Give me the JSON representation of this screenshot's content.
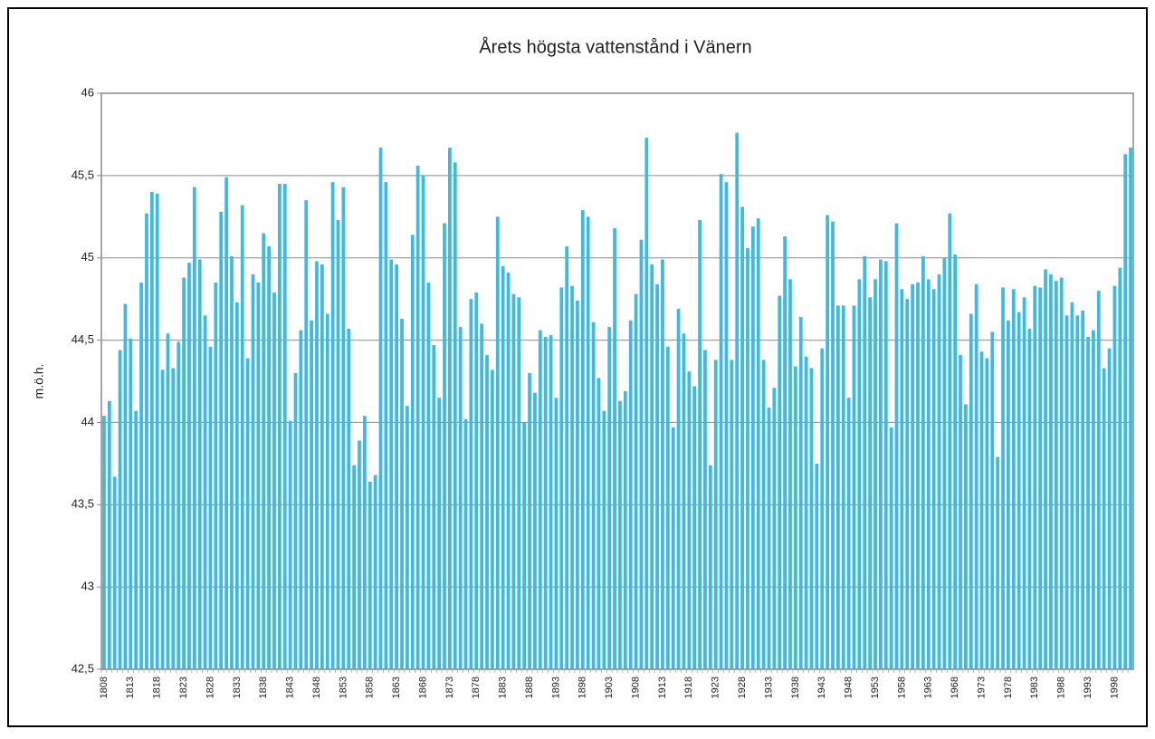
{
  "chart_data": {
    "type": "bar",
    "title": "Årets högsta vattenstånd i Vänern",
    "y_label": "m.ö.h.",
    "color": "#3bbbe3",
    "grid": true,
    "ylim": [
      42.5,
      46
    ],
    "yticks": [
      {
        "value": 42.5,
        "label": "42,5"
      },
      43,
      {
        "value": 43.5,
        "label": "43,5"
      },
      44,
      {
        "value": 44.5,
        "label": "44,5"
      },
      45,
      {
        "value": 45.5,
        "label": "45,5"
      },
      46
    ],
    "categories": [
      "1808",
      null,
      null,
      null,
      null,
      "1813",
      null,
      null,
      null,
      null,
      "1818",
      null,
      null,
      null,
      null,
      "1823",
      null,
      null,
      null,
      null,
      "1828",
      null,
      null,
      null,
      null,
      "1833",
      null,
      null,
      null,
      null,
      "1838",
      null,
      null,
      null,
      null,
      "1843",
      null,
      null,
      null,
      null,
      "1848",
      null,
      null,
      null,
      null,
      "1853",
      null,
      null,
      null,
      null,
      "1858",
      null,
      null,
      null,
      null,
      "1863",
      null,
      null,
      null,
      null,
      "1868",
      null,
      null,
      null,
      null,
      "1873",
      null,
      null,
      null,
      null,
      "1878",
      null,
      null,
      null,
      null,
      "1883",
      null,
      null,
      null,
      null,
      "1888",
      null,
      null,
      null,
      null,
      "1893",
      null,
      null,
      null,
      null,
      "1898",
      null,
      null,
      null,
      null,
      "1903",
      null,
      null,
      null,
      null,
      "1908",
      null,
      null,
      null,
      null,
      "1913",
      null,
      null,
      null,
      null,
      "1918",
      null,
      null,
      null,
      null,
      "1923",
      null,
      null,
      null,
      null,
      "1928",
      null,
      null,
      null,
      null,
      "1933",
      null,
      null,
      null,
      null,
      "1938",
      null,
      null,
      null,
      null,
      "1943",
      null,
      null,
      null,
      null,
      "1948",
      null,
      null,
      null,
      null,
      "1953",
      null,
      null,
      null,
      null,
      "1958",
      null,
      null,
      null,
      null,
      "1963",
      null,
      null,
      null,
      null,
      "1968",
      null,
      null,
      null,
      null,
      "1973",
      null,
      null,
      null,
      null,
      "1978",
      null,
      null,
      null,
      null,
      "1983",
      null,
      null,
      null,
      null,
      "1988",
      null,
      null,
      null,
      null,
      "1993",
      null,
      null,
      null,
      null,
      "1998",
      null,
      null,
      null
    ],
    "values": [
      44.04,
      44.13,
      43.67,
      44.44,
      44.72,
      44.51,
      44.07,
      44.85,
      45.27,
      45.4,
      45.39,
      44.32,
      44.54,
      44.33,
      44.49,
      44.88,
      44.97,
      45.43,
      44.99,
      44.65,
      44.46,
      44.85,
      45.28,
      45.49,
      45.01,
      44.73,
      45.32,
      44.39,
      44.9,
      44.85,
      45.15,
      45.07,
      44.79,
      45.45,
      45.45,
      44.01,
      44.3,
      44.56,
      45.35,
      44.62,
      44.98,
      44.96,
      44.66,
      45.46,
      45.23,
      45.43,
      44.57,
      43.74,
      43.89,
      44.04,
      43.64,
      43.68,
      45.67,
      45.46,
      44.99,
      44.96,
      44.63,
      44.1,
      45.14,
      45.56,
      45.5,
      44.85,
      44.47,
      44.15,
      45.21,
      45.67,
      45.58,
      44.58,
      44.02,
      44.75,
      44.79,
      44.6,
      44.41,
      44.32,
      45.25,
      44.95,
      44.91,
      44.78,
      44.76,
      44.0,
      44.3,
      44.18,
      44.56,
      44.52,
      44.53,
      44.15,
      44.82,
      45.07,
      44.83,
      44.74,
      45.29,
      45.25,
      44.61,
      44.27,
      44.07,
      44.58,
      45.18,
      44.13,
      44.19,
      44.62,
      44.78,
      45.11,
      45.73,
      44.96,
      44.84,
      44.99,
      44.46,
      43.97,
      44.69,
      44.54,
      44.31,
      44.22,
      45.23,
      44.44,
      43.74,
      44.38,
      45.51,
      45.46,
      44.38,
      45.76,
      45.31,
      45.06,
      45.19,
      45.24,
      44.38,
      44.09,
      44.21,
      44.77,
      45.13,
      44.87,
      44.34,
      44.64,
      44.4,
      44.33,
      43.75,
      44.45,
      45.26,
      45.22,
      44.71,
      44.71,
      44.15,
      44.71,
      44.87,
      45.01,
      44.76,
      44.87,
      44.99,
      44.98,
      43.97,
      45.21,
      44.81,
      44.75,
      44.84,
      44.85,
      45.01,
      44.87,
      44.81,
      44.9,
      45.0,
      45.27,
      45.02,
      44.41,
      44.11,
      44.66,
      44.84,
      44.43,
      44.39,
      44.55,
      43.79,
      44.82,
      44.62,
      44.81,
      44.67,
      44.76,
      44.57,
      44.83,
      44.82,
      44.93,
      44.9,
      44.86,
      44.88,
      44.65,
      44.73,
      44.65,
      44.68,
      44.52,
      44.56,
      44.8,
      44.33,
      44.45,
      44.83,
      44.94,
      45.63,
      45.67
    ]
  }
}
